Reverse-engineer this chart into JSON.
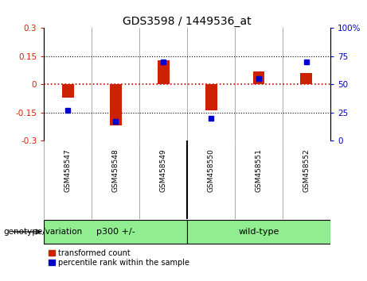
{
  "title": "GDS3598 / 1449536_at",
  "samples": [
    "GSM458547",
    "GSM458548",
    "GSM458549",
    "GSM458550",
    "GSM458551",
    "GSM458552"
  ],
  "red_values": [
    -0.07,
    -0.22,
    0.13,
    -0.14,
    0.07,
    0.06
  ],
  "blue_values": [
    27,
    17,
    70,
    20,
    55,
    70
  ],
  "ylim_left": [
    -0.3,
    0.3
  ],
  "ylim_right": [
    0,
    100
  ],
  "yticks_left": [
    -0.3,
    -0.15,
    0,
    0.15,
    0.3
  ],
  "yticks_right": [
    0,
    25,
    50,
    75,
    100
  ],
  "red_color": "#CC2200",
  "blue_color": "#0000CC",
  "zero_line_color": "#CC0000",
  "dotted_line_color": "#000000",
  "group_label": "genotype/variation",
  "legend_red": "transformed count",
  "legend_blue": "percentile rank within the sample",
  "bar_width": 0.25,
  "blue_marker_size": 5,
  "tick_color_left": "#CC2200",
  "tick_color_right": "#0000CC",
  "label_bg": "#C8C8C8",
  "group_color": "#90EE90"
}
